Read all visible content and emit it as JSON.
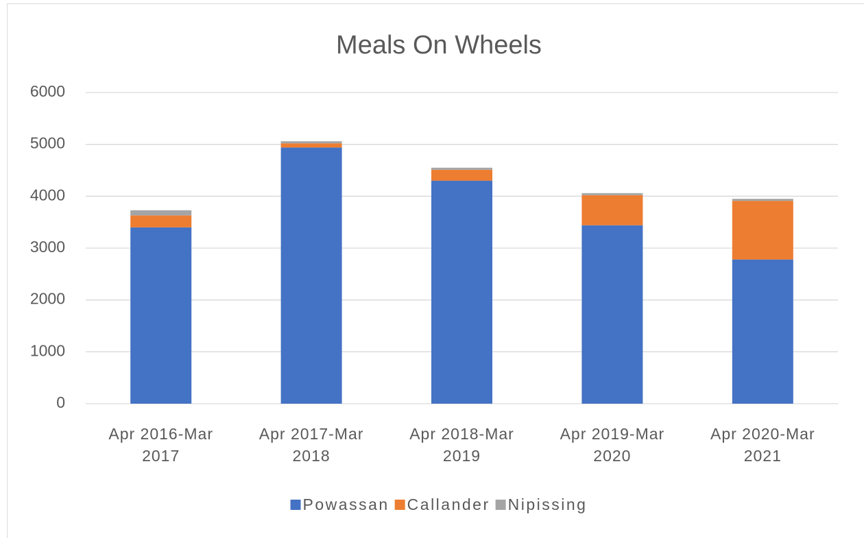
{
  "chart_data": {
    "type": "bar",
    "stacked": true,
    "title": "Meals On Wheels",
    "categories": [
      "Apr 2016-Mar 2017",
      "Apr 2017-Mar 2018",
      "Apr 2018-Mar 2019",
      "Apr 2019-Mar 2020",
      "Apr 2020-Mar 2021"
    ],
    "series": [
      {
        "name": "Powassan",
        "color": "#4472c4",
        "values": [
          3400,
          4940,
          4300,
          3440,
          2780
        ]
      },
      {
        "name": "Callander",
        "color": "#ed7d31",
        "values": [
          230,
          80,
          210,
          580,
          1130
        ]
      },
      {
        "name": "Nipissing",
        "color": "#a5a5a5",
        "values": [
          100,
          40,
          40,
          40,
          40
        ]
      }
    ],
    "ylim": [
      0,
      6000
    ],
    "yticks": [
      0,
      1000,
      2000,
      3000,
      4000,
      5000,
      6000
    ],
    "grid": true,
    "legend": "bottom"
  }
}
